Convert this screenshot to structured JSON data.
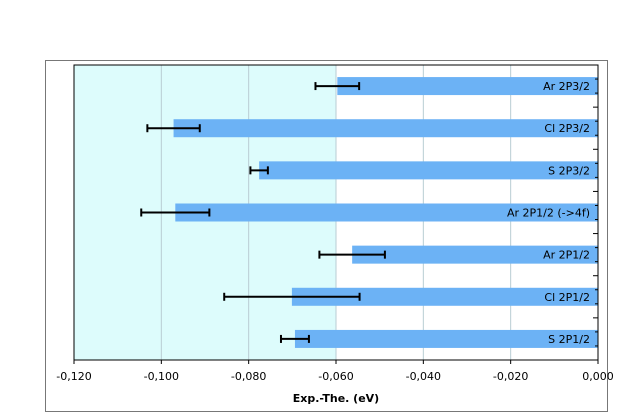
{
  "chart_data": {
    "type": "bar",
    "orientation": "horizontal",
    "title": "",
    "xlabel": "Exp.-The. (eV)",
    "ylabel": "",
    "xlim": [
      -0.12,
      0.0
    ],
    "xticks": [
      -0.12,
      -0.1,
      -0.08,
      -0.06,
      -0.04,
      -0.02,
      0.0
    ],
    "xtick_labels": [
      "-0,120",
      "-0,100",
      "-0,080",
      "-0,060",
      "-0,040",
      "-0,020",
      "0,000"
    ],
    "grid": true,
    "categories": [
      "Ar 2P3/2",
      "Cl 2P3/2",
      "S 2P3/2",
      "Ar 2P1/2 (->4f)",
      "Ar 2P1/2",
      "Cl 2P1/2",
      "S 2P1/2"
    ],
    "values": [
      -0.0597,
      -0.0972,
      -0.0776,
      -0.0968,
      -0.0563,
      -0.0701,
      -0.0694
    ],
    "errors": [
      0.005,
      0.006,
      0.002,
      0.0078,
      0.0075,
      0.0155,
      0.0032
    ],
    "colors": {
      "bar": "#6cb2f5",
      "plot_bg_left": "#ddfcfc",
      "plot_bg_right": "#ffffff",
      "grid": "#b9cdd3",
      "error_bar": "#000000"
    }
  }
}
